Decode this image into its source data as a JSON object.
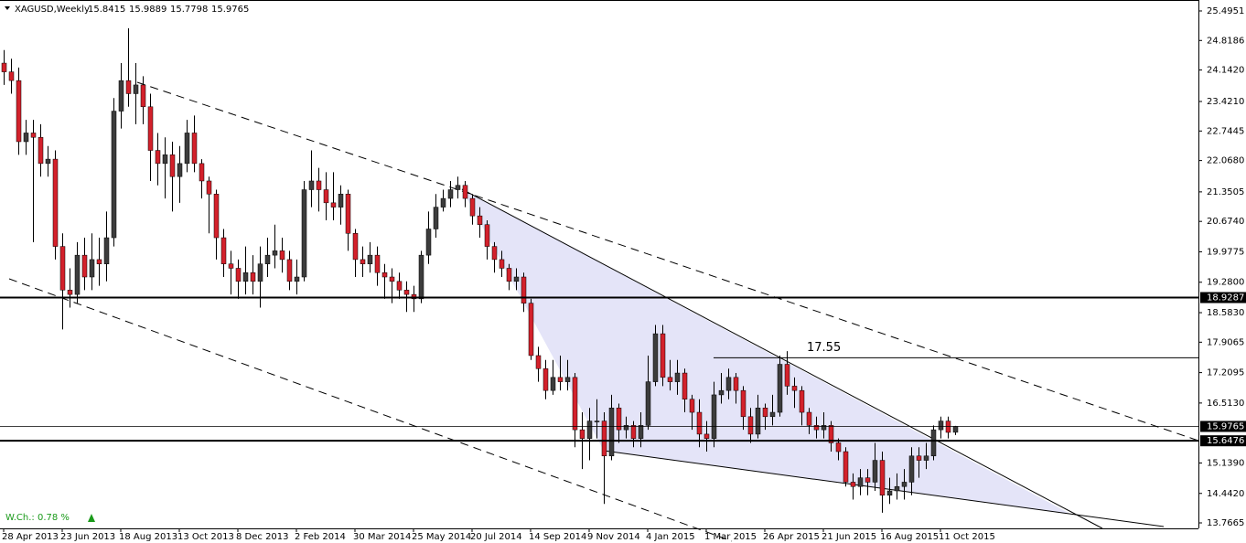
{
  "chart_data": {
    "type": "candlestick",
    "title": "XAGUSD,Weekly",
    "change_label": "W.Ch.: 0.78 %",
    "up_color": "#3c3c3c",
    "down_color": "#d3212b",
    "wick_color": "#000000",
    "categories": [
      "28 Apr 2013",
      null,
      null,
      null,
      null,
      null,
      null,
      null,
      "23 Jun 2013",
      null,
      null,
      null,
      null,
      null,
      null,
      null,
      "18 Aug 2013",
      null,
      null,
      null,
      null,
      null,
      null,
      null,
      "13 Oct 2013",
      null,
      null,
      null,
      null,
      null,
      null,
      null,
      "8 Dec 2013",
      null,
      null,
      null,
      null,
      null,
      null,
      null,
      "2 Feb 2014",
      null,
      null,
      null,
      null,
      null,
      null,
      null,
      "30 Mar 2014",
      null,
      null,
      null,
      null,
      null,
      null,
      null,
      "25 May 2014",
      null,
      null,
      null,
      null,
      null,
      null,
      null,
      "20 Jul 2014",
      null,
      null,
      null,
      null,
      null,
      null,
      null,
      "14 Sep 2014",
      null,
      null,
      null,
      null,
      null,
      null,
      null,
      "9 Nov 2014",
      null,
      null,
      null,
      null,
      null,
      null,
      null,
      "4 Jan 2015",
      null,
      null,
      null,
      null,
      null,
      null,
      null,
      "1 Mar 2015",
      null,
      null,
      null,
      null,
      null,
      null,
      null,
      "26 Apr 2015",
      null,
      null,
      null,
      null,
      null,
      null,
      null,
      "21 Jun 2015",
      null,
      null,
      null,
      null,
      null,
      null,
      null,
      "16 Aug 2015",
      null,
      null,
      null,
      null,
      null,
      null,
      null,
      "11 Oct 2015",
      null,
      null
    ],
    "open": [
      24.3,
      24.1,
      23.9,
      22.5,
      22.7,
      22.6,
      22.0,
      22.1,
      20.1,
      19.1,
      19.0,
      19.9,
      19.4,
      19.8,
      19.7,
      20.3,
      23.2,
      23.9,
      23.6,
      23.8,
      23.3,
      22.3,
      22.0,
      22.2,
      21.7,
      22.0,
      22.7,
      22.0,
      21.6,
      21.3,
      20.3,
      19.7,
      19.6,
      19.3,
      19.5,
      19.3,
      19.7,
      19.9,
      20.0,
      19.8,
      19.3,
      19.4,
      21.4,
      21.6,
      21.4,
      21.1,
      21.0,
      21.3,
      20.4,
      19.8,
      19.7,
      19.9,
      19.5,
      19.4,
      19.3,
      19.1,
      19.0,
      18.9,
      19.9,
      20.5,
      21.0,
      21.2,
      21.4,
      21.5,
      21.2,
      20.8,
      20.6,
      20.1,
      19.8,
      19.6,
      19.3,
      19.4,
      18.8,
      17.6,
      17.3,
      16.8,
      17.1,
      17.0,
      17.1,
      15.9,
      15.7,
      16.1,
      16.1,
      15.3,
      16.4,
      15.9,
      16.0,
      15.7,
      16.0,
      17.0,
      18.1,
      17.1,
      17.0,
      17.2,
      16.6,
      16.3,
      15.8,
      15.7,
      16.7,
      16.8,
      17.1,
      16.8,
      16.2,
      15.8,
      16.4,
      16.2,
      16.3,
      17.4,
      16.9,
      16.8,
      16.3,
      16.0,
      15.9,
      16.0,
      15.6,
      15.4,
      14.7,
      14.6,
      14.8,
      14.7,
      15.2,
      14.4,
      14.5,
      14.6,
      14.7,
      15.3,
      15.2,
      15.3,
      15.9,
      16.1,
      15.8415
    ],
    "high": [
      24.6,
      24.4,
      24.2,
      23.0,
      23.0,
      22.9,
      22.4,
      22.3,
      20.4,
      19.6,
      20.2,
      20.3,
      20.4,
      20.3,
      20.9,
      23.5,
      24.3,
      25.1,
      24.3,
      24.0,
      23.6,
      22.7,
      22.6,
      22.5,
      22.4,
      23.0,
      23.1,
      22.1,
      21.7,
      21.4,
      20.5,
      20.0,
      19.8,
      20.1,
      19.9,
      20.1,
      20.3,
      20.6,
      20.3,
      20.0,
      19.8,
      21.6,
      22.3,
      21.9,
      21.8,
      21.8,
      21.5,
      21.4,
      20.5,
      20.1,
      20.2,
      20.1,
      19.7,
      19.6,
      19.5,
      19.3,
      19.2,
      20.0,
      20.9,
      21.3,
      21.4,
      21.6,
      21.7,
      21.6,
      21.3,
      21.0,
      20.7,
      20.2,
      20.0,
      19.7,
      19.6,
      19.5,
      18.9,
      17.8,
      17.5,
      17.5,
      17.6,
      17.5,
      17.2,
      16.3,
      16.4,
      16.6,
      16.3,
      16.7,
      16.5,
      16.2,
      16.1,
      16.3,
      17.6,
      18.3,
      18.3,
      17.5,
      17.5,
      17.3,
      16.7,
      16.6,
      16.1,
      17.0,
      17.2,
      17.3,
      17.2,
      16.9,
      16.4,
      16.7,
      16.5,
      16.7,
      17.6,
      17.7,
      17.1,
      16.9,
      16.4,
      16.2,
      16.3,
      16.1,
      15.7,
      15.5,
      14.9,
      15.0,
      15.0,
      15.6,
      15.4,
      14.8,
      14.9,
      15.0,
      15.5,
      15.5,
      15.6,
      16.0,
      16.2,
      16.2,
      15.9889
    ],
    "low": [
      23.8,
      23.6,
      22.2,
      22.2,
      20.2,
      21.7,
      21.7,
      19.8,
      18.2,
      18.7,
      18.8,
      19.1,
      19.1,
      19.2,
      19.3,
      20.1,
      22.8,
      23.3,
      22.9,
      22.9,
      21.6,
      21.5,
      21.2,
      20.9,
      21.1,
      21.8,
      21.8,
      21.2,
      20.4,
      19.8,
      19.4,
      19.0,
      18.9,
      19.0,
      19.0,
      18.7,
      19.4,
      19.6,
      19.5,
      19.1,
      19.0,
      19.3,
      21.0,
      20.9,
      20.7,
      20.7,
      20.6,
      20.0,
      19.4,
      19.4,
      19.5,
      19.2,
      18.9,
      18.8,
      18.9,
      18.6,
      18.6,
      18.8,
      19.7,
      20.3,
      20.9,
      21.0,
      21.2,
      21.0,
      20.6,
      20.3,
      19.8,
      19.5,
      19.4,
      19.1,
      19.1,
      18.6,
      17.5,
      17.0,
      16.6,
      16.7,
      16.8,
      16.8,
      15.5,
      15.0,
      15.2,
      15.7,
      14.2,
      15.2,
      15.6,
      15.7,
      15.5,
      15.5,
      15.9,
      16.9,
      16.9,
      16.8,
      16.7,
      16.3,
      15.9,
      15.5,
      15.4,
      15.5,
      16.5,
      16.6,
      16.5,
      15.9,
      15.6,
      15.7,
      15.9,
      16.0,
      16.2,
      16.7,
      16.4,
      16.0,
      15.8,
      15.7,
      15.7,
      15.4,
      15.2,
      14.6,
      14.3,
      14.4,
      14.4,
      14.5,
      14.0,
      14.2,
      14.3,
      14.3,
      14.4,
      14.8,
      15.0,
      15.2,
      15.7,
      15.7,
      15.7798
    ],
    "close": [
      24.1,
      23.9,
      22.5,
      22.7,
      22.6,
      22.0,
      22.1,
      20.1,
      19.1,
      19.0,
      19.9,
      19.4,
      19.8,
      19.7,
      20.3,
      23.2,
      23.9,
      23.6,
      23.8,
      23.3,
      22.3,
      22.0,
      22.2,
      21.7,
      22.0,
      22.7,
      22.0,
      21.6,
      21.3,
      20.3,
      19.7,
      19.6,
      19.3,
      19.5,
      19.3,
      19.7,
      19.9,
      20.0,
      19.8,
      19.3,
      19.4,
      21.4,
      21.6,
      21.4,
      21.1,
      21.0,
      21.3,
      20.4,
      19.8,
      19.7,
      19.9,
      19.5,
      19.4,
      19.3,
      19.1,
      19.0,
      18.9,
      19.9,
      20.5,
      21.0,
      21.2,
      21.4,
      21.5,
      21.2,
      20.8,
      20.6,
      20.1,
      19.8,
      19.6,
      19.3,
      19.4,
      18.8,
      17.6,
      17.3,
      16.8,
      17.1,
      17.0,
      17.1,
      15.9,
      15.7,
      16.1,
      16.1,
      15.3,
      16.4,
      15.9,
      16.0,
      15.7,
      16.0,
      17.0,
      18.1,
      17.1,
      17.0,
      17.2,
      16.6,
      16.3,
      15.8,
      15.7,
      16.7,
      16.8,
      17.1,
      16.8,
      16.2,
      15.8,
      16.4,
      16.2,
      16.3,
      17.4,
      16.9,
      16.8,
      16.3,
      16.0,
      15.9,
      16.0,
      15.6,
      15.4,
      14.7,
      14.6,
      14.8,
      14.7,
      15.2,
      14.4,
      14.5,
      14.6,
      14.7,
      15.3,
      15.2,
      15.3,
      15.9,
      16.1,
      15.84,
      15.9765
    ],
    "ylim": [
      13.641,
      25.746
    ],
    "yticks": [
      25.4951,
      24.8186,
      {
        "value": 24.142,
        "label": "24.1420"
      },
      {
        "value": 23.421,
        "label": "23.4210"
      },
      22.7445,
      {
        "value": 22.068,
        "label": "22.0680"
      },
      21.3505,
      {
        "value": 20.674,
        "label": "20.6740"
      },
      19.9775,
      {
        "value": 19.28,
        "label": "19.2800"
      },
      {
        "value": 18.583,
        "label": "18.5830"
      },
      17.9065,
      17.2095,
      {
        "value": 16.513,
        "label": "16.5130"
      },
      {
        "value": 15.139,
        "label": "15.1390"
      },
      {
        "value": 14.442,
        "label": "14.4420"
      },
      13.7665
    ],
    "levels": [
      18.9287,
      15.6476
    ],
    "resistance": 17.55
  }
}
